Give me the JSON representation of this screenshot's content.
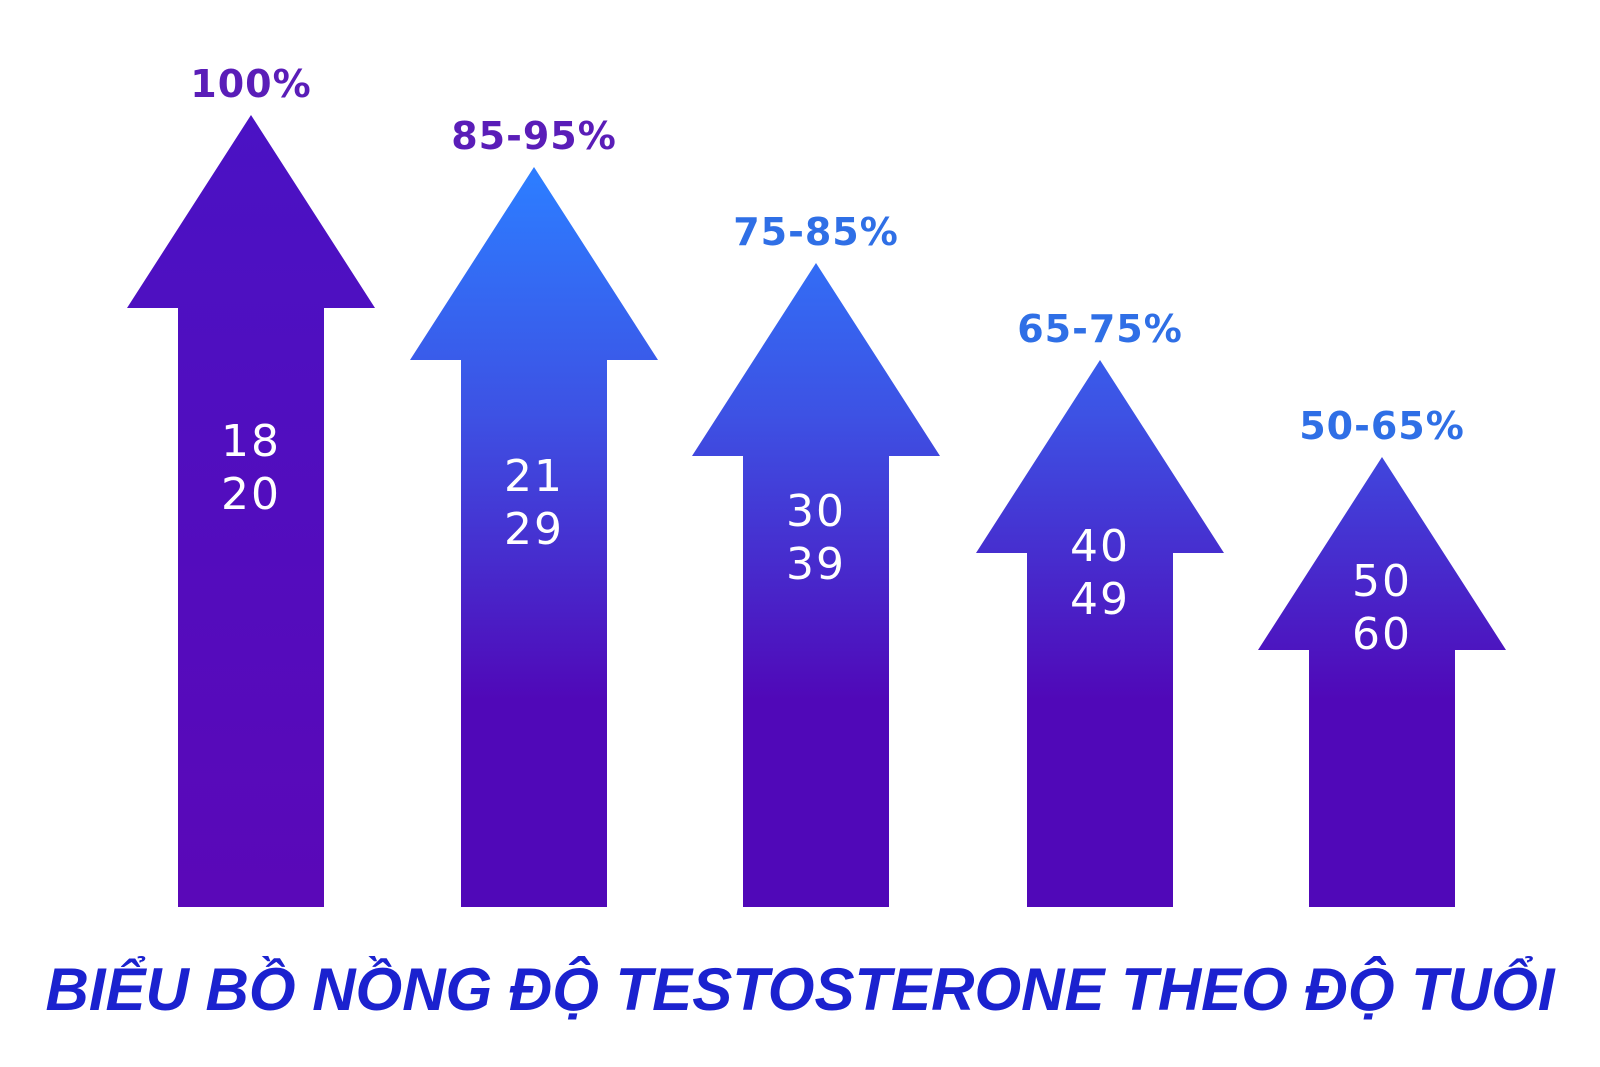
{
  "title": "BIỂU BỒ NỒNG ĐỘ TESTOSTERONE THEO ĐỘ TUỔI",
  "arrows": [
    {
      "level": "100%",
      "ages": [
        "18",
        "20"
      ]
    },
    {
      "level": "85-95%",
      "ages": [
        "21",
        "29"
      ]
    },
    {
      "level": "75-85%",
      "ages": [
        "30",
        "39"
      ]
    },
    {
      "level": "65-75%",
      "ages": [
        "40",
        "49"
      ]
    },
    {
      "level": "50-65%",
      "ages": [
        "50",
        "60"
      ]
    }
  ]
}
